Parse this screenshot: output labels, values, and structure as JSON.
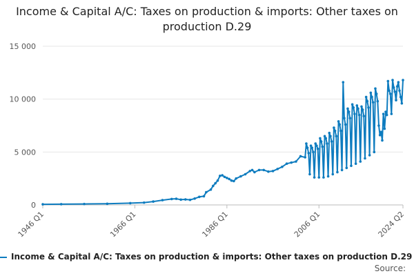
{
  "chart_data": {
    "type": "line",
    "title": "Income & Capital A/C: Taxes on production & imports: Other taxes on production D.29",
    "xlabel": "",
    "ylabel": "",
    "ylim": [
      0,
      15000
    ],
    "xlim": [
      "1946 Q1",
      "2024 Q2"
    ],
    "y_ticks": [
      0,
      5000,
      10000,
      15000
    ],
    "y_tick_labels": [
      "0",
      "5 000",
      "10 000",
      "15 000"
    ],
    "x_ticks": [
      "1946 Q1",
      "1966 Q1",
      "1986 Q1",
      "2006 Q1",
      "2024 Q2"
    ],
    "grid": "horizontal",
    "legend_position": "bottom",
    "color": "#0e7cbf",
    "series": [
      {
        "name": "Income & Capital A/C: Taxes on production & imports: Other taxes on production D.29",
        "points": [
          [
            "1946 Q1",
            60
          ],
          [
            "1950 Q1",
            70
          ],
          [
            "1955 Q1",
            90
          ],
          [
            "1960 Q1",
            110
          ],
          [
            "1965 Q1",
            170
          ],
          [
            "1968 Q1",
            220
          ],
          [
            "1970 Q1",
            320
          ],
          [
            "1972 Q1",
            450
          ],
          [
            "1974 Q1",
            560
          ],
          [
            "1975 Q1",
            580
          ],
          [
            "1976 Q1",
            500
          ],
          [
            "1977 Q1",
            520
          ],
          [
            "1978 Q1",
            480
          ],
          [
            "1979 Q1",
            600
          ],
          [
            "1980 Q1",
            760
          ],
          [
            "1981 Q1",
            820
          ],
          [
            "1981 Q3",
            1200
          ],
          [
            "1982 Q3",
            1450
          ],
          [
            "1983 Q1",
            1800
          ],
          [
            "1983 Q3",
            2050
          ],
          [
            "1984 Q1",
            2300
          ],
          [
            "1984 Q3",
            2750
          ],
          [
            "1985 Q1",
            2800
          ],
          [
            "1985 Q3",
            2650
          ],
          [
            "1986 Q1",
            2550
          ],
          [
            "1986 Q3",
            2450
          ],
          [
            "1987 Q1",
            2300
          ],
          [
            "1987 Q3",
            2250
          ],
          [
            "1988 Q1",
            2500
          ],
          [
            "1989 Q1",
            2700
          ],
          [
            "1990 Q1",
            2900
          ],
          [
            "1991 Q1",
            3200
          ],
          [
            "1991 Q3",
            3300
          ],
          [
            "1992 Q1",
            3100
          ],
          [
            "1993 Q1",
            3300
          ],
          [
            "1994 Q1",
            3300
          ],
          [
            "1995 Q1",
            3150
          ],
          [
            "1996 Q1",
            3200
          ],
          [
            "1997 Q1",
            3400
          ],
          [
            "1998 Q1",
            3600
          ],
          [
            "1999 Q1",
            3900
          ],
          [
            "2000 Q1",
            4000
          ],
          [
            "2001 Q1",
            4100
          ],
          [
            "2002 Q1",
            4600
          ],
          [
            "2003 Q1",
            4500
          ],
          [
            "2003 Q2",
            5800
          ],
          [
            "2003 Q3",
            5400
          ],
          [
            "2003 Q4",
            4900
          ],
          [
            "2004 Q1",
            2900
          ],
          [
            "2004 Q2",
            5600
          ],
          [
            "2004 Q3",
            5400
          ],
          [
            "2004 Q4",
            5000
          ],
          [
            "2005 Q1",
            2600
          ],
          [
            "2005 Q2",
            5800
          ],
          [
            "2005 Q3",
            5600
          ],
          [
            "2005 Q4",
            5300
          ],
          [
            "2006 Q1",
            2600
          ],
          [
            "2006 Q2",
            6300
          ],
          [
            "2006 Q3",
            6000
          ],
          [
            "2006 Q4",
            5500
          ],
          [
            "2007 Q1",
            2600
          ],
          [
            "2007 Q2",
            6500
          ],
          [
            "2007 Q3",
            6300
          ],
          [
            "2007 Q4",
            5800
          ],
          [
            "2008 Q1",
            2700
          ],
          [
            "2008 Q2",
            6800
          ],
          [
            "2008 Q3",
            6500
          ],
          [
            "2008 Q4",
            6000
          ],
          [
            "2009 Q1",
            2900
          ],
          [
            "2009 Q2",
            7300
          ],
          [
            "2009 Q3",
            7000
          ],
          [
            "2009 Q4",
            6500
          ],
          [
            "2010 Q1",
            3100
          ],
          [
            "2010 Q2",
            7900
          ],
          [
            "2010 Q3",
            7600
          ],
          [
            "2010 Q4",
            7000
          ],
          [
            "2011 Q1",
            3300
          ],
          [
            "2011 Q2",
            11600
          ],
          [
            "2011 Q3",
            8200
          ],
          [
            "2011 Q4",
            7600
          ],
          [
            "2012 Q1",
            3500
          ],
          [
            "2012 Q2",
            9100
          ],
          [
            "2012 Q3",
            8800
          ],
          [
            "2012 Q4",
            8200
          ],
          [
            "2013 Q1",
            3700
          ],
          [
            "2013 Q2",
            9500
          ],
          [
            "2013 Q3",
            9200
          ],
          [
            "2013 Q4",
            8600
          ],
          [
            "2014 Q1",
            3900
          ],
          [
            "2014 Q2",
            9400
          ],
          [
            "2014 Q3",
            9100
          ],
          [
            "2014 Q4",
            8500
          ],
          [
            "2015 Q1",
            4100
          ],
          [
            "2015 Q2",
            9300
          ],
          [
            "2015 Q3",
            9000
          ],
          [
            "2015 Q4",
            8400
          ],
          [
            "2016 Q1",
            4400
          ],
          [
            "2016 Q2",
            10200
          ],
          [
            "2016 Q3",
            9800
          ],
          [
            "2016 Q4",
            9200
          ],
          [
            "2017 Q1",
            4700
          ],
          [
            "2017 Q2",
            10600
          ],
          [
            "2017 Q3",
            10200
          ],
          [
            "2017 Q4",
            9700
          ],
          [
            "2018 Q1",
            5000
          ],
          [
            "2018 Q2",
            11000
          ],
          [
            "2018 Q3",
            10500
          ],
          [
            "2018 Q4",
            9800
          ],
          [
            "2019 Q1",
            7500
          ],
          [
            "2019 Q2",
            6600
          ],
          [
            "2019 Q3",
            6900
          ],
          [
            "2019 Q4",
            6100
          ],
          [
            "2020 Q1",
            8600
          ],
          [
            "2020 Q2",
            7200
          ],
          [
            "2020 Q3",
            8800
          ],
          [
            "2020 Q4",
            8500
          ],
          [
            "2021 Q1",
            11700
          ],
          [
            "2021 Q2",
            10800
          ],
          [
            "2021 Q3",
            10500
          ],
          [
            "2021 Q4",
            8600
          ],
          [
            "2022 Q1",
            11800
          ],
          [
            "2022 Q2",
            11100
          ],
          [
            "2022 Q3",
            10700
          ],
          [
            "2022 Q4",
            9900
          ],
          [
            "2023 Q1",
            11200
          ],
          [
            "2023 Q2",
            11600
          ],
          [
            "2023 Q3",
            10800
          ],
          [
            "2023 Q4",
            10200
          ],
          [
            "2024 Q1",
            9600
          ],
          [
            "2024 Q2",
            11800
          ]
        ]
      }
    ]
  },
  "legend_label": "Income & Capital A/C: Taxes on production & imports: Other taxes on production D.29",
  "source_label": "Source:"
}
